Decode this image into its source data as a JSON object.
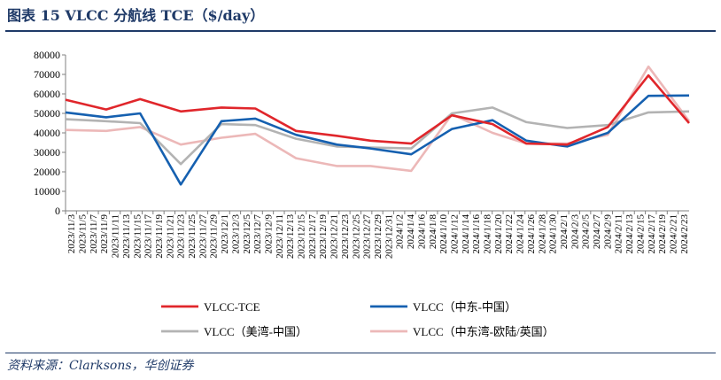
{
  "title": "图表 15  VLCC 分航线 TCE（$/day）",
  "source": "资料来源：Clarksons，华创证券",
  "chart_data": {
    "type": "line",
    "categories": [
      "2023/11/3",
      "2023/11/5",
      "2023/11/7",
      "2023/11/9",
      "2023/11/11",
      "2023/11/13",
      "2023/11/15",
      "2023/11/17",
      "2023/11/19",
      "2023/11/21",
      "2023/11/23",
      "2023/11/25",
      "2023/11/27",
      "2023/11/29",
      "2023/12/1",
      "2023/12/3",
      "2023/12/5",
      "2023/12/7",
      "2023/12/9",
      "2023/12/11",
      "2023/12/13",
      "2023/12/15",
      "2023/12/17",
      "2023/12/19",
      "2023/12/21",
      "2023/12/23",
      "2023/12/25",
      "2023/12/27",
      "2023/12/29",
      "2023/12/31",
      "2024/1/2",
      "2024/1/4",
      "2024/1/6",
      "2024/1/8",
      "2024/1/10",
      "2024/1/12",
      "2024/1/14",
      "2024/1/16",
      "2024/1/18",
      "2024/1/20",
      "2024/1/22",
      "2024/1/24",
      "2024/1/26",
      "2024/1/28",
      "2024/1/30",
      "2024/2/1",
      "2024/2/3",
      "2024/2/5",
      "2024/2/7",
      "2024/2/9",
      "2024/2/11",
      "2024/2/13",
      "2024/2/15",
      "2024/2/17",
      "2024/2/19",
      "2024/2/21",
      "2024/2/23"
    ],
    "ylim": [
      0,
      80000
    ],
    "yticks": [
      0,
      10000,
      20000,
      30000,
      40000,
      50000,
      60000,
      70000,
      80000
    ],
    "grid": false,
    "legend_position": "bottom",
    "series": [
      {
        "name": "VLCC-TCE",
        "color": "#e0262b",
        "points": [
          [
            0,
            57000
          ],
          [
            6,
            52000
          ],
          [
            11,
            57300
          ],
          [
            17,
            51000
          ],
          [
            23,
            53000
          ],
          [
            28,
            52500
          ],
          [
            34,
            41000
          ],
          [
            40,
            38500
          ],
          [
            45,
            36000
          ],
          [
            51,
            34500
          ],
          [
            57,
            49000
          ],
          [
            63,
            44500
          ],
          [
            68,
            34500
          ],
          [
            74,
            34000
          ],
          [
            80,
            43000
          ],
          [
            86,
            69500
          ],
          [
            92,
            45000
          ]
        ]
      },
      {
        "name": "VLCC（中东-中国）",
        "color": "#1560b0",
        "points": [
          [
            0,
            50500
          ],
          [
            6,
            48000
          ],
          [
            11,
            50000
          ],
          [
            17,
            13500
          ],
          [
            23,
            46000
          ],
          [
            28,
            47300
          ],
          [
            34,
            39000
          ],
          [
            40,
            34000
          ],
          [
            45,
            32000
          ],
          [
            51,
            29000
          ],
          [
            57,
            42000
          ],
          [
            63,
            46500
          ],
          [
            68,
            36000
          ],
          [
            74,
            33000
          ],
          [
            80,
            40000
          ],
          [
            86,
            59000
          ],
          [
            92,
            59200
          ]
        ]
      },
      {
        "name": "VLCC（美湾-中国）",
        "color": "#b3b3b3",
        "points": [
          [
            0,
            47000
          ],
          [
            6,
            46000
          ],
          [
            11,
            45000
          ],
          [
            17,
            24000
          ],
          [
            23,
            44500
          ],
          [
            28,
            44000
          ],
          [
            34,
            37000
          ],
          [
            40,
            33000
          ],
          [
            45,
            32500
          ],
          [
            51,
            32000
          ],
          [
            57,
            50000
          ],
          [
            63,
            53000
          ],
          [
            68,
            45500
          ],
          [
            74,
            42500
          ],
          [
            80,
            44000
          ],
          [
            86,
            50500
          ],
          [
            92,
            51000
          ]
        ]
      },
      {
        "name": "VLCC（中东湾-欧陆/英国）",
        "color": "#ecb8b8",
        "points": [
          [
            0,
            41500
          ],
          [
            6,
            41000
          ],
          [
            11,
            43000
          ],
          [
            17,
            34000
          ],
          [
            23,
            37500
          ],
          [
            28,
            39500
          ],
          [
            34,
            27000
          ],
          [
            40,
            23000
          ],
          [
            45,
            23000
          ],
          [
            51,
            20500
          ],
          [
            57,
            49500
          ],
          [
            63,
            40000
          ],
          [
            68,
            34500
          ],
          [
            74,
            34500
          ],
          [
            80,
            39000
          ],
          [
            86,
            74000
          ],
          [
            92,
            46000
          ]
        ]
      }
    ]
  }
}
